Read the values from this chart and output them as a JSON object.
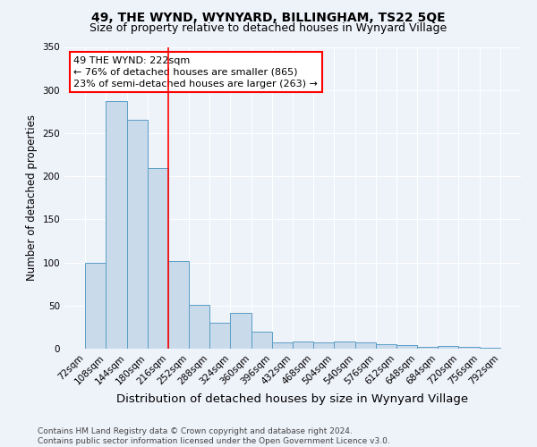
{
  "title": "49, THE WYND, WYNYARD, BILLINGHAM, TS22 5QE",
  "subtitle": "Size of property relative to detached houses in Wynyard Village",
  "xlabel": "Distribution of detached houses by size in Wynyard Village",
  "ylabel": "Number of detached properties",
  "bin_labels": [
    "72sqm",
    "108sqm",
    "144sqm",
    "180sqm",
    "216sqm",
    "252sqm",
    "288sqm",
    "324sqm",
    "360sqm",
    "396sqm",
    "432sqm",
    "468sqm",
    "504sqm",
    "540sqm",
    "576sqm",
    "612sqm",
    "648sqm",
    "684sqm",
    "720sqm",
    "756sqm",
    "792sqm"
  ],
  "bin_values": [
    100,
    287,
    265,
    210,
    102,
    51,
    30,
    41,
    20,
    7,
    8,
    7,
    8,
    7,
    5,
    4,
    2,
    3,
    2,
    1
  ],
  "bar_color": "#c9daea",
  "bar_edge_color": "#5a9ec8",
  "property_line_x": 4,
  "property_line_color": "red",
  "annotation_text": "49 THE WYND: 222sqm\n← 76% of detached houses are smaller (865)\n23% of semi-detached houses are larger (263) →",
  "annotation_box_color": "white",
  "annotation_box_edge_color": "red",
  "ylim": [
    0,
    350
  ],
  "yticks": [
    0,
    50,
    100,
    150,
    200,
    250,
    300,
    350
  ],
  "footer": "Contains HM Land Registry data © Crown copyright and database right 2024.\nContains public sector information licensed under the Open Government Licence v3.0.",
  "background_color": "#eef2f9",
  "plot_background_color": "#eef2f9",
  "title_fontsize": 10,
  "subtitle_fontsize": 9,
  "xlabel_fontsize": 9.5,
  "ylabel_fontsize": 8.5,
  "tick_fontsize": 7.5,
  "annotation_fontsize": 8,
  "footer_fontsize": 6.5,
  "grid_color": "#ffffff"
}
